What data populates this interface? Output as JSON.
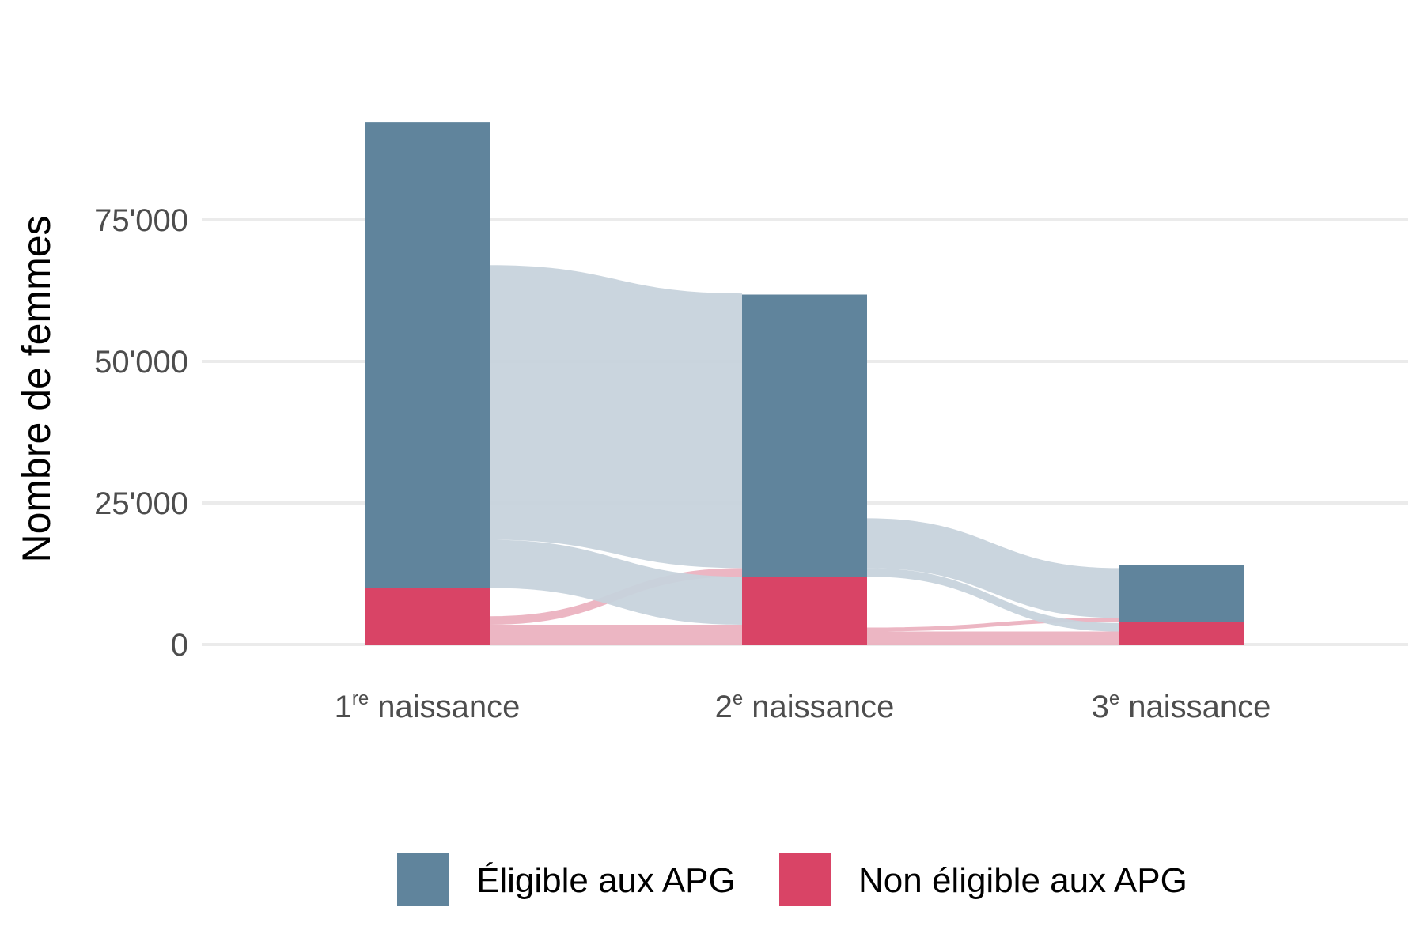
{
  "chart_data": {
    "type": "bar",
    "ylabel": "Nombre de femmes",
    "ylim": [
      0,
      92000
    ],
    "yticks": [
      {
        "value": 0,
        "label": "0"
      },
      {
        "value": 25000,
        "label": "25'000"
      },
      {
        "value": 50000,
        "label": "50'000"
      },
      {
        "value": 75000,
        "label": "75'000"
      }
    ],
    "categories": [
      {
        "num": "1",
        "sup": "re",
        "rest": " naissance"
      },
      {
        "num": "2",
        "sup": "e",
        "rest": " naissance"
      },
      {
        "num": "3",
        "sup": "e",
        "rest": " naissance"
      }
    ],
    "series": [
      {
        "name": "Non éligible aux APG",
        "color": "#d94466",
        "values": [
          10000,
          12000,
          4000
        ]
      },
      {
        "name": "Éligible aux APG",
        "color": "#60849c",
        "values": [
          82300,
          49800,
          10000
        ]
      }
    ],
    "flows": [
      {
        "from": 0,
        "to": 1,
        "type": "elig-elig",
        "value": 48500,
        "color": "#c7d3dc"
      },
      {
        "from": 0,
        "to": 1,
        "type": "elig-nonelig",
        "value": 8500,
        "color": "#c7d3dc"
      },
      {
        "from": 0,
        "to": 1,
        "type": "nonelig-elig",
        "value": 1500,
        "color": "#ebb2c0"
      },
      {
        "from": 0,
        "to": 1,
        "type": "nonelig-nonelig",
        "value": 3500,
        "color": "#ebb2c0"
      },
      {
        "from": 1,
        "to": 2,
        "type": "elig-elig",
        "value": 8800,
        "color": "#c7d3dc"
      },
      {
        "from": 1,
        "to": 2,
        "type": "elig-nonelig",
        "value": 1500,
        "color": "#c7d3dc"
      },
      {
        "from": 1,
        "to": 2,
        "type": "nonelig-elig",
        "value": 700,
        "color": "#ebb2c0"
      },
      {
        "from": 1,
        "to": 2,
        "type": "nonelig-nonelig",
        "value": 2300,
        "color": "#ebb2c0"
      }
    ],
    "legend": {
      "position": "bottom"
    }
  }
}
